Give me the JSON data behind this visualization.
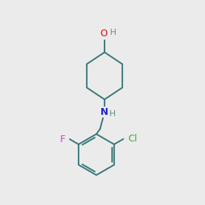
{
  "background_color": "#ebebeb",
  "bond_color": "#3d7a7a",
  "atom_colors": {
    "O": "#dd1111",
    "N": "#2222cc",
    "Cl": "#44aa44",
    "F": "#cc44bb",
    "H": "#5a9090",
    "C": "#3d7a7a"
  },
  "figsize": [
    3.0,
    3.0
  ],
  "dpi": 100,
  "lw": 1.6
}
